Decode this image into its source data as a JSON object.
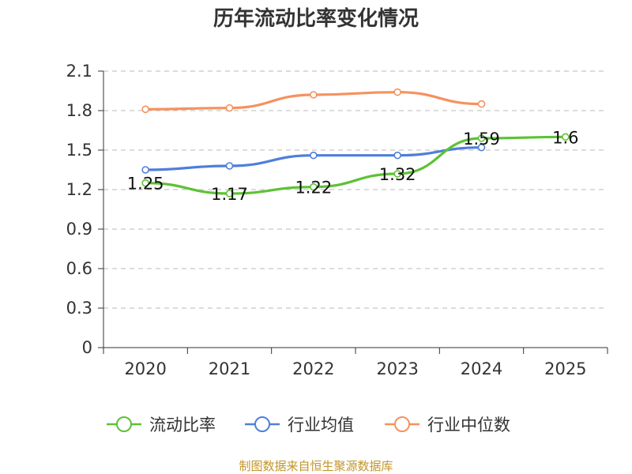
{
  "chart_data": {
    "type": "line",
    "title": "历年流动比率变化情况",
    "categories": [
      "2020",
      "2021",
      "2022",
      "2023",
      "2024",
      "2025"
    ],
    "ylim": [
      0,
      2.1
    ],
    "yticks": [
      "0",
      "0.3",
      "0.6",
      "0.9",
      "1.2",
      "1.5",
      "1.8",
      "2.1"
    ],
    "grid": true,
    "legend_position": "bottom",
    "series": [
      {
        "name": "流动比率",
        "color": "#5dc234",
        "values": [
          1.25,
          1.17,
          1.22,
          1.32,
          1.59,
          1.6
        ],
        "labels": [
          "1.25",
          "1.17",
          "1.22",
          "1.32",
          "1.59",
          "1.6"
        ]
      },
      {
        "name": "行业均值",
        "color": "#4f7fd9",
        "values": [
          1.35,
          1.38,
          1.46,
          1.46,
          1.52,
          null
        ]
      },
      {
        "name": "行业中位数",
        "color": "#f5925e",
        "values": [
          1.81,
          1.82,
          1.92,
          1.94,
          1.85,
          null
        ]
      }
    ]
  },
  "source_text": "制图数据来自恒生聚源数据库"
}
